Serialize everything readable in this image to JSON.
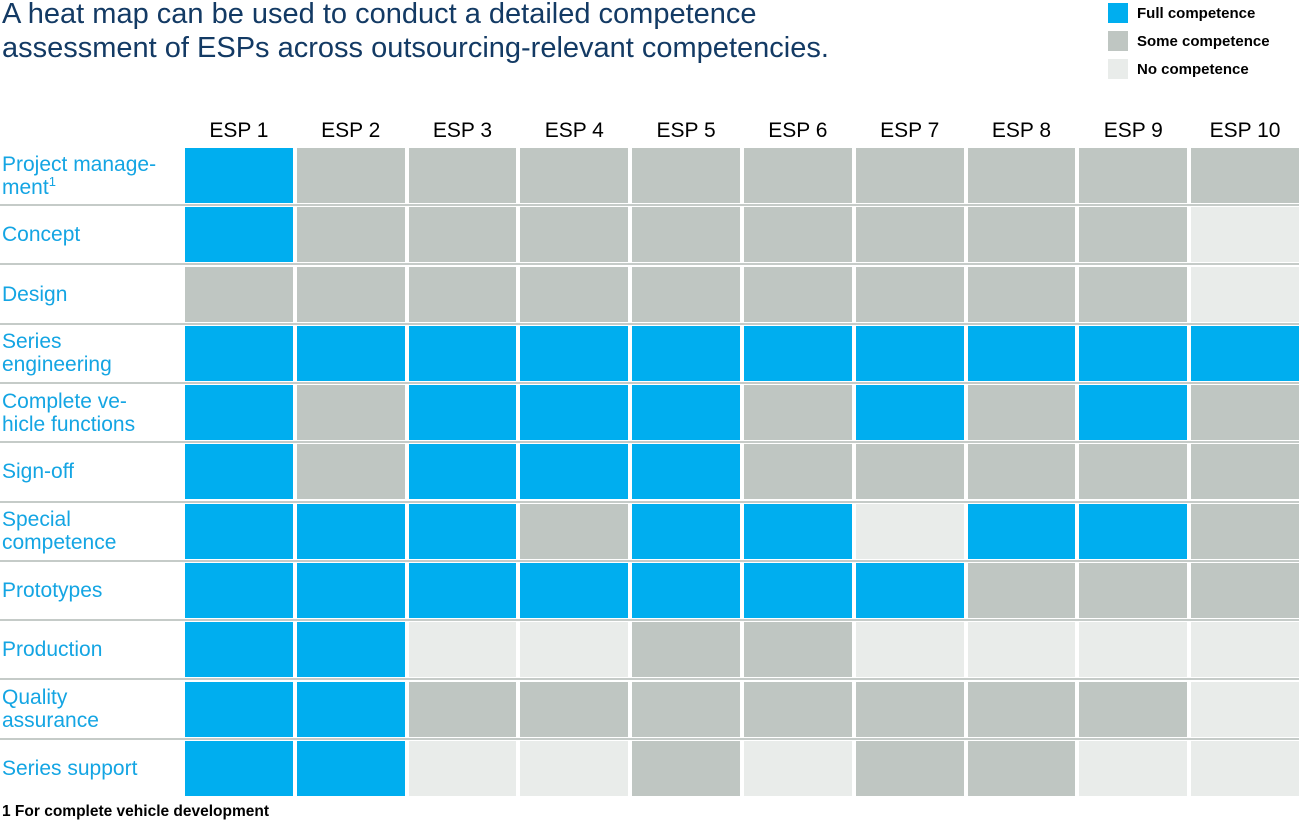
{
  "title": {
    "lines": [
      "A heat map can be used to conduct a detailed competence",
      "assessment of ESPs across outsourcing-relevant competencies."
    ]
  },
  "legend": [
    {
      "label": "Full competence",
      "level": "full"
    },
    {
      "label": "Some competence",
      "level": "some"
    },
    {
      "label": "No competence",
      "level": "none"
    }
  ],
  "colors": {
    "full": "#00AEEF",
    "some": "#BFC6C2",
    "none": "#E9ECEA",
    "title": "#133A64",
    "row_label": "#14A5E3",
    "separator": "#C5CBC8"
  },
  "footnote": "1 For complete vehicle development",
  "chart_data": {
    "type": "heatmap",
    "columns": [
      "ESP 1",
      "ESP 2",
      "ESP 3",
      "ESP 4",
      "ESP 5",
      "ESP 6",
      "ESP 7",
      "ESP 8",
      "ESP 9",
      "ESP 10"
    ],
    "levels": {
      "full": "Full competence",
      "some": "Some competence",
      "none": "No competence"
    },
    "rows": [
      {
        "label": "Project management",
        "label_lines": [
          "Project manage-",
          "ment"
        ],
        "superscript": "1",
        "values": [
          "full",
          "some",
          "some",
          "some",
          "some",
          "some",
          "some",
          "some",
          "some",
          "some"
        ]
      },
      {
        "label": "Concept",
        "label_lines": [
          "Concept"
        ],
        "values": [
          "full",
          "some",
          "some",
          "some",
          "some",
          "some",
          "some",
          "some",
          "some",
          "none"
        ]
      },
      {
        "label": "Design",
        "label_lines": [
          "Design"
        ],
        "values": [
          "some",
          "some",
          "some",
          "some",
          "some",
          "some",
          "some",
          "some",
          "some",
          "none"
        ]
      },
      {
        "label": "Series engineering",
        "label_lines": [
          "Series",
          "engineering"
        ],
        "values": [
          "full",
          "full",
          "full",
          "full",
          "full",
          "full",
          "full",
          "full",
          "full",
          "full"
        ]
      },
      {
        "label": "Complete vehicle functions",
        "label_lines": [
          "Complete ve-",
          "hicle functions"
        ],
        "values": [
          "full",
          "some",
          "full",
          "full",
          "full",
          "some",
          "full",
          "some",
          "full",
          "some"
        ]
      },
      {
        "label": "Sign-off",
        "label_lines": [
          "Sign-off"
        ],
        "values": [
          "full",
          "some",
          "full",
          "full",
          "full",
          "some",
          "some",
          "some",
          "some",
          "some"
        ]
      },
      {
        "label": "Special competence",
        "label_lines": [
          "Special",
          "competence"
        ],
        "values": [
          "full",
          "full",
          "full",
          "some",
          "full",
          "full",
          "none",
          "full",
          "full",
          "some"
        ]
      },
      {
        "label": "Prototypes",
        "label_lines": [
          "Prototypes"
        ],
        "values": [
          "full",
          "full",
          "full",
          "full",
          "full",
          "full",
          "full",
          "some",
          "some",
          "some"
        ]
      },
      {
        "label": "Production",
        "label_lines": [
          "Production"
        ],
        "values": [
          "full",
          "full",
          "none",
          "none",
          "some",
          "some",
          "none",
          "none",
          "none",
          "none"
        ]
      },
      {
        "label": "Quality assurance",
        "label_lines": [
          "Quality",
          "assurance"
        ],
        "values": [
          "full",
          "full",
          "some",
          "some",
          "some",
          "some",
          "some",
          "some",
          "some",
          "none"
        ]
      },
      {
        "label": "Series support",
        "label_lines": [
          "Series support"
        ],
        "values": [
          "full",
          "full",
          "none",
          "none",
          "some",
          "none",
          "some",
          "some",
          "none",
          "none"
        ]
      }
    ]
  }
}
